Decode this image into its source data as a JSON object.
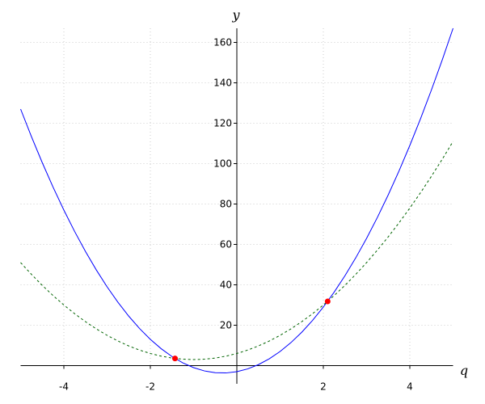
{
  "chart_data": {
    "type": "line",
    "x_label": "q",
    "y_label": "y",
    "xlim": [
      -5,
      5
    ],
    "ylim": [
      -9,
      167
    ],
    "xticks": [
      -4,
      -2,
      2,
      4
    ],
    "yticks": [
      20,
      40,
      60,
      80,
      100,
      120,
      140,
      160
    ],
    "grid": true,
    "x": [
      -5,
      -4.75,
      -4.5,
      -4.25,
      -4,
      -3.75,
      -3.5,
      -3.25,
      -3,
      -2.75,
      -2.5,
      -2.25,
      -2,
      -1.75,
      -1.5,
      -1.25,
      -1,
      -0.75,
      -0.5,
      -0.25,
      0,
      0.25,
      0.5,
      0.75,
      1,
      1.25,
      1.5,
      1.75,
      2,
      2.25,
      2.5,
      2.75,
      3,
      3.25,
      3.5,
      3.75,
      4,
      4.25,
      4.5,
      4.75,
      5
    ],
    "series": [
      {
        "color": "#0000ff",
        "dashed": false,
        "values": [
          127,
          113.375,
          100.5,
          88.375,
          77,
          66.375,
          56.5,
          47.375,
          39,
          31.375,
          24.5,
          18.375,
          13,
          8.375,
          4.5,
          1.375,
          -1,
          -2.625,
          -3.5,
          -3.625,
          -3,
          -1.625,
          0.5,
          3.375,
          7,
          11.375,
          16.5,
          22.375,
          29,
          36.375,
          44.5,
          53.375,
          63,
          73.375,
          84.5,
          96.375,
          109,
          122.375,
          136.5,
          151.375,
          167
        ]
      },
      {
        "color": "#006400",
        "dashed": true,
        "values": [
          51,
          45.1875,
          39.75,
          34.6875,
          30,
          25.6875,
          21.75,
          18.1875,
          15,
          12.1875,
          9.75,
          7.6875,
          6,
          4.6875,
          3.75,
          3.1875,
          3,
          3.1875,
          3.75,
          4.6875,
          6,
          7.6875,
          9.75,
          12.1875,
          15,
          18.1875,
          21.75,
          25.6875,
          30,
          34.6875,
          39.75,
          45.1875,
          51,
          57.1875,
          63.75,
          70.6875,
          78,
          85.6875,
          93.75,
          102.1875,
          111
        ]
      }
    ],
    "points": {
      "color": "#ff0000",
      "x": [
        -1.43,
        2.1
      ],
      "values": [
        3.56,
        31.8
      ]
    }
  }
}
